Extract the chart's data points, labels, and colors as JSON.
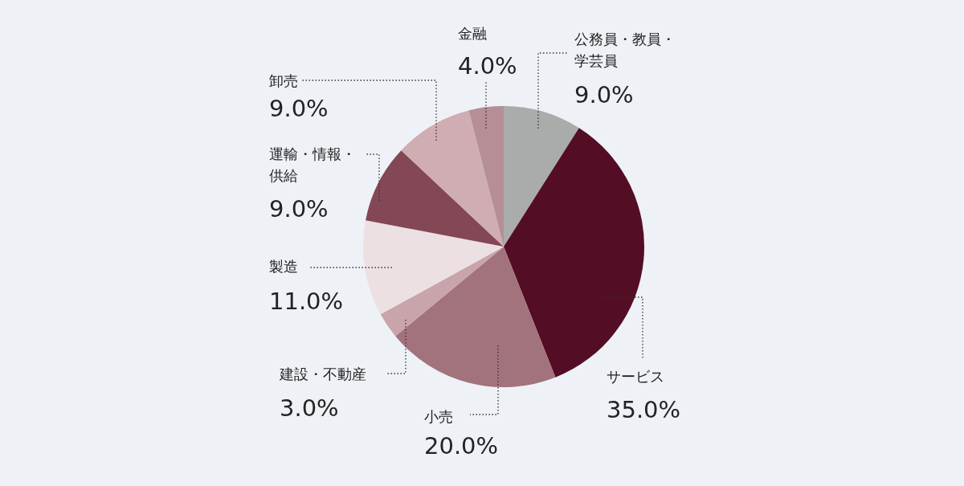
{
  "chart_data": {
    "type": "pie",
    "categories": [
      "公務員・教員・学芸員",
      "サービス",
      "小売",
      "建設・不動産",
      "製造",
      "運輸・情報・供給",
      "卸売",
      "金融"
    ],
    "values": [
      9,
      35,
      20,
      3,
      11,
      9,
      9,
      4
    ],
    "value_labels": [
      "9.0%",
      "35.0%",
      "20.0%",
      "3.0%",
      "11.0%",
      "9.0%",
      "9.0%",
      "4.0%"
    ],
    "colors": [
      "#aaacab",
      "#530d24",
      "#a3737d",
      "#c9a4aa",
      "#ece0e2",
      "#844755",
      "#cfadb2",
      "#b68e95"
    ]
  }
}
